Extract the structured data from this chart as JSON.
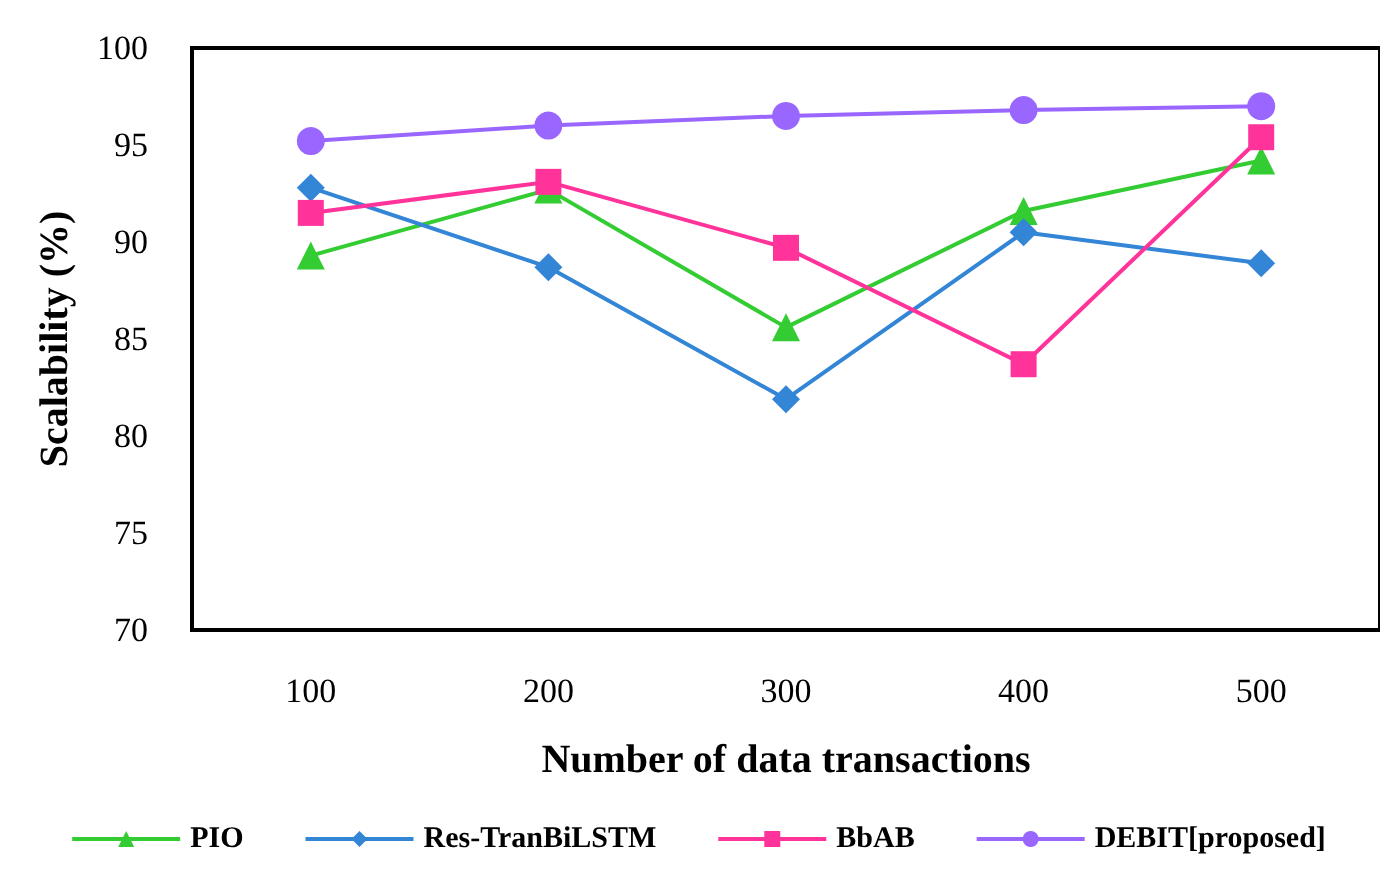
{
  "chart_data": {
    "type": "line",
    "xlabel": "Number of data transactions",
    "ylabel": "Scalability (%)",
    "categories": [
      "100",
      "200",
      "300",
      "400",
      "500"
    ],
    "ylim": [
      70,
      100
    ],
    "yticks": [
      70,
      75,
      80,
      85,
      90,
      95,
      100
    ],
    "grid": false,
    "legend": "bottom",
    "line_style": "solid",
    "series": [
      {
        "name": "PIO",
        "color": "#33cc33",
        "marker": "triangle",
        "values": [
          89.3,
          92.7,
          85.6,
          91.6,
          94.2
        ]
      },
      {
        "name": "Res-TranBiLSTM",
        "color": "#3385d6",
        "marker": "diamond",
        "values": [
          92.8,
          88.7,
          81.9,
          90.5,
          88.9
        ]
      },
      {
        "name": "BbAB",
        "color": "#ff3399",
        "marker": "square",
        "values": [
          91.5,
          93.1,
          89.7,
          83.7,
          95.4
        ]
      },
      {
        "name": "DEBIT[proposed]",
        "color": "#9966ff",
        "marker": "circle",
        "values": [
          95.2,
          96.0,
          96.5,
          96.8,
          97.0
        ]
      }
    ]
  }
}
